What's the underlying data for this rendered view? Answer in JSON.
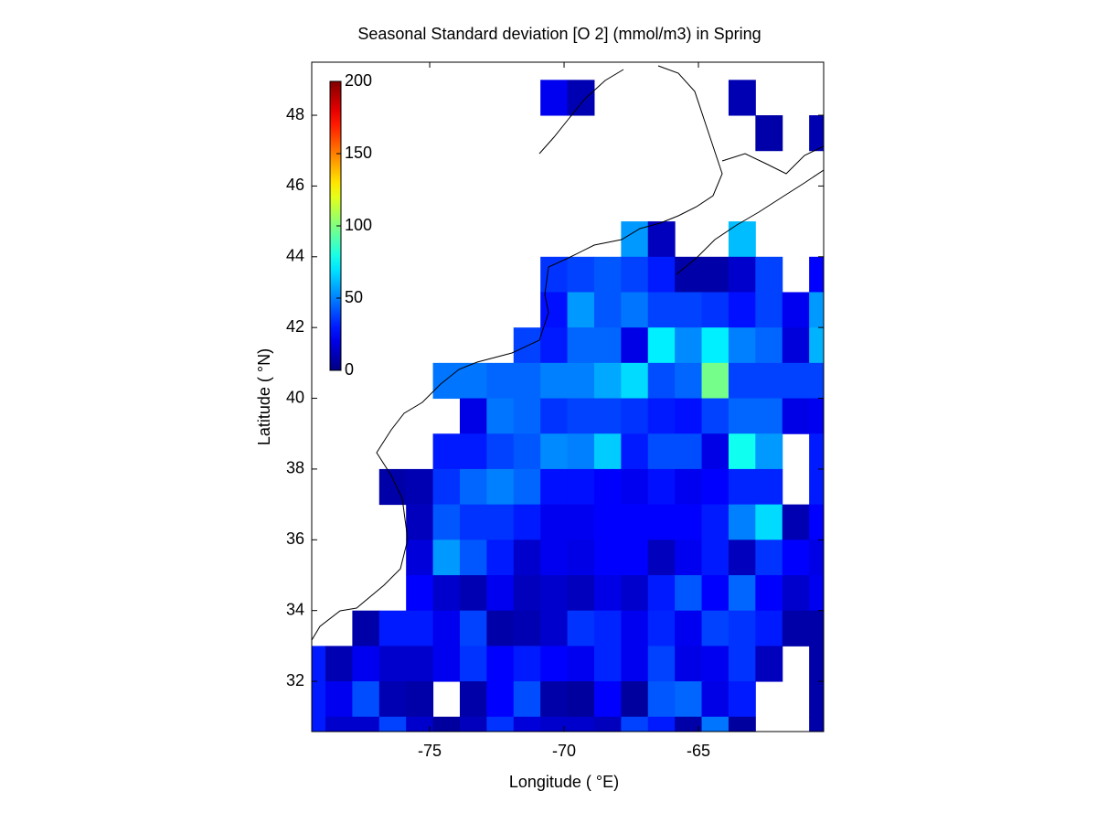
{
  "chart_data": {
    "type": "heatmap",
    "title": "Seasonal Standard deviation [O 2] (mmol/m3) in  Spring",
    "x_label": "Longitude ( °E)",
    "y_label": "Latitude ( °N)",
    "xlim": [
      -79.39,
      -60.34
    ],
    "ylim": [
      30.58,
      49.5
    ],
    "xticks": [
      -75,
      -70,
      -65
    ],
    "yticks": [
      32,
      34,
      36,
      38,
      40,
      42,
      44,
      46,
      48
    ],
    "x": [
      -79.38,
      -78.38,
      -77.38,
      -76.38,
      -75.38,
      -74.38,
      -73.38,
      -72.38,
      -71.38,
      -70.38,
      -69.38,
      -68.38,
      -67.38,
      -66.38,
      -65.38,
      -64.38,
      -63.38,
      -62.38,
      -61.38,
      -60.38
    ],
    "y": [
      48.5,
      47.5,
      46.5,
      45.5,
      44.5,
      43.5,
      42.5,
      41.5,
      40.5,
      39.5,
      38.5,
      37.5,
      36.5,
      35.5,
      34.5,
      33.5,
      32.5,
      31.5,
      30.5
    ],
    "z": [
      [
        null,
        null,
        null,
        null,
        null,
        null,
        null,
        null,
        null,
        22,
        10,
        null,
        null,
        null,
        null,
        null,
        10,
        null,
        null,
        null
      ],
      [
        null,
        null,
        null,
        null,
        null,
        null,
        null,
        null,
        null,
        null,
        null,
        null,
        null,
        null,
        null,
        null,
        null,
        8,
        null,
        10
      ],
      [
        null,
        null,
        null,
        null,
        null,
        null,
        null,
        null,
        null,
        null,
        null,
        null,
        null,
        null,
        null,
        null,
        null,
        null,
        null,
        null
      ],
      [
        null,
        null,
        null,
        null,
        null,
        null,
        null,
        null,
        null,
        null,
        null,
        null,
        null,
        null,
        null,
        null,
        null,
        null,
        null,
        null
      ],
      [
        null,
        null,
        null,
        null,
        null,
        null,
        null,
        null,
        null,
        null,
        null,
        null,
        55,
        12,
        null,
        null,
        62,
        null,
        null,
        null
      ],
      [
        null,
        null,
        null,
        null,
        null,
        null,
        null,
        null,
        null,
        35,
        38,
        42,
        38,
        30,
        8,
        8,
        15,
        38,
        null,
        25
      ],
      [
        null,
        null,
        null,
        null,
        null,
        null,
        null,
        null,
        null,
        28,
        55,
        42,
        48,
        38,
        38,
        35,
        28,
        38,
        22,
        55
      ],
      [
        null,
        null,
        null,
        null,
        null,
        null,
        null,
        null,
        38,
        30,
        45,
        45,
        20,
        72,
        52,
        72,
        50,
        45,
        18,
        60
      ],
      [
        null,
        null,
        null,
        null,
        null,
        48,
        48,
        45,
        45,
        50,
        50,
        58,
        68,
        40,
        45,
        98,
        38,
        38,
        38,
        38
      ],
      [
        null,
        null,
        null,
        null,
        null,
        null,
        20,
        48,
        45,
        35,
        38,
        38,
        35,
        30,
        28,
        38,
        45,
        45,
        20,
        22
      ],
      [
        null,
        null,
        null,
        null,
        null,
        30,
        30,
        38,
        42,
        52,
        50,
        65,
        30,
        40,
        40,
        20,
        78,
        55,
        null,
        30
      ],
      [
        null,
        null,
        null,
        8,
        10,
        35,
        45,
        50,
        45,
        28,
        28,
        25,
        22,
        28,
        22,
        25,
        32,
        32,
        null,
        30
      ],
      [
        null,
        null,
        null,
        null,
        12,
        42,
        35,
        35,
        30,
        22,
        22,
        25,
        25,
        25,
        25,
        30,
        50,
        68,
        10,
        25
      ],
      [
        null,
        null,
        null,
        null,
        18,
        55,
        42,
        30,
        15,
        22,
        20,
        25,
        25,
        12,
        22,
        30,
        12,
        35,
        25,
        20
      ],
      [
        null,
        null,
        null,
        null,
        25,
        15,
        10,
        22,
        12,
        15,
        12,
        20,
        15,
        30,
        42,
        25,
        45,
        25,
        15,
        22
      ],
      [
        null,
        null,
        8,
        30,
        30,
        22,
        38,
        8,
        10,
        15,
        35,
        32,
        22,
        32,
        22,
        38,
        35,
        30,
        8,
        8
      ],
      [
        30,
        10,
        22,
        15,
        15,
        22,
        35,
        25,
        30,
        25,
        22,
        32,
        22,
        38,
        20,
        22,
        35,
        12,
        null,
        8
      ],
      [
        30,
        22,
        40,
        10,
        8,
        null,
        8,
        25,
        40,
        8,
        6,
        25,
        6,
        42,
        45,
        20,
        30,
        null,
        null,
        8
      ],
      [
        30,
        15,
        15,
        38,
        15,
        6,
        12,
        35,
        18,
        15,
        15,
        12,
        38,
        30,
        8,
        48,
        6,
        null,
        null,
        8
      ]
    ],
    "colormap": "jet",
    "clim": [
      0,
      200
    ],
    "cticks": [
      0,
      50,
      100,
      150,
      200
    ]
  }
}
